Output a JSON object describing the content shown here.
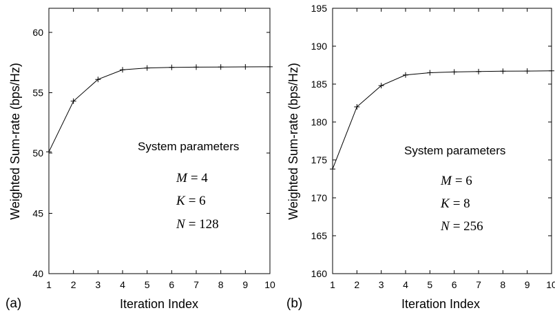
{
  "chart_data": [
    {
      "type": "line",
      "panel_label": "(a)",
      "xlabel": "Iteration Index",
      "ylabel": "Weighted Sum-rate (bps/Hz)",
      "xlim": [
        1,
        10
      ],
      "ylim": [
        40,
        62
      ],
      "xticks": [
        1,
        2,
        3,
        4,
        5,
        6,
        7,
        8,
        9,
        10
      ],
      "yticks": [
        40,
        45,
        50,
        55,
        60
      ],
      "grid": false,
      "marker": "plus",
      "series": [
        {
          "x": [
            1,
            2,
            3,
            4,
            5,
            6,
            7,
            8,
            9,
            10
          ],
          "values": [
            50.1,
            54.3,
            56.1,
            56.9,
            57.05,
            57.1,
            57.12,
            57.13,
            57.14,
            57.15
          ]
        }
      ],
      "annotation": {
        "title": "System parameters",
        "params": [
          {
            "symbol": "M",
            "eq": "= 4"
          },
          {
            "symbol": "K",
            "eq": "= 6"
          },
          {
            "symbol": "N",
            "eq": "= 128"
          }
        ]
      }
    },
    {
      "type": "line",
      "panel_label": "(b)",
      "xlabel": "Iteration Index",
      "ylabel": "Weighted Sum-rate (bps/Hz)",
      "xlim": [
        1,
        10
      ],
      "ylim": [
        160,
        195
      ],
      "xticks": [
        1,
        2,
        3,
        4,
        5,
        6,
        7,
        8,
        9,
        10
      ],
      "yticks": [
        160,
        165,
        170,
        175,
        180,
        185,
        190,
        195
      ],
      "grid": false,
      "marker": "plus",
      "series": [
        {
          "x": [
            1,
            2,
            3,
            4,
            5,
            6,
            7,
            8,
            9,
            10
          ],
          "values": [
            173.8,
            182.0,
            184.8,
            186.2,
            186.5,
            186.6,
            186.65,
            186.7,
            186.72,
            186.75
          ]
        }
      ],
      "annotation": {
        "title": "System parameters",
        "params": [
          {
            "symbol": "M",
            "eq": "= 6"
          },
          {
            "symbol": "K",
            "eq": "= 8"
          },
          {
            "symbol": "N",
            "eq": "= 256"
          }
        ]
      }
    }
  ]
}
